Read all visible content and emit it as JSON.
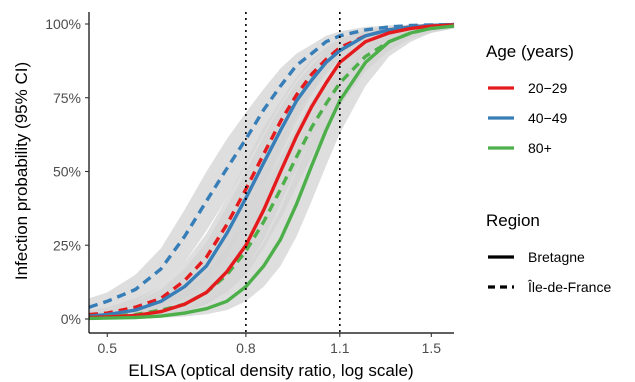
{
  "chart_data": {
    "type": "line",
    "xlabel": "ELISA (optical density ratio, log scale)",
    "ylabel": "Infection probability (95% CI)",
    "x_scale": "log",
    "xlim": [
      0.47,
      1.62
    ],
    "ylim": [
      0,
      1
    ],
    "x_ticks": [
      {
        "value": 0.5,
        "label": "0.5"
      },
      {
        "value": 0.8,
        "label": "0.8"
      },
      {
        "value": 1.1,
        "label": "1.1"
      },
      {
        "value": 1.5,
        "label": "1.5"
      }
    ],
    "y_ticks": [
      {
        "value": 0,
        "label": "0%"
      },
      {
        "value": 0.25,
        "label": "25%"
      },
      {
        "value": 0.5,
        "label": "50%"
      },
      {
        "value": 0.75,
        "label": "75%"
      },
      {
        "value": 1,
        "label": "100%"
      }
    ],
    "vlines": [
      0.8,
      1.1
    ],
    "grid": false,
    "legend_placement": "right",
    "legends": [
      {
        "title": "Age (years)",
        "items": [
          {
            "label": "20−29",
            "color": "#E41A1C",
            "style": "solid"
          },
          {
            "label": "40−49",
            "color": "#377EB8",
            "style": "solid"
          },
          {
            "label": "80+",
            "color": "#4DAF4A",
            "style": "solid"
          }
        ]
      },
      {
        "title": "Region",
        "items": [
          {
            "label": "Bretagne",
            "color": "#000000",
            "style": "solid"
          },
          {
            "label": "Île-de-France",
            "color": "#000000",
            "style": "dashed"
          }
        ]
      }
    ],
    "ribbon_color": "#d3d3d3",
    "series": [
      {
        "age": "40−49",
        "region": "Île-de-France",
        "color": "#377EB8",
        "dashed": true,
        "x": [
          0.47,
          0.5,
          0.55,
          0.6,
          0.65,
          0.7,
          0.75,
          0.8,
          0.85,
          0.9,
          0.95,
          1.0,
          1.05,
          1.1,
          1.2,
          1.3,
          1.4,
          1.5,
          1.62
        ],
        "y": [
          0.04,
          0.06,
          0.1,
          0.17,
          0.28,
          0.4,
          0.51,
          0.61,
          0.71,
          0.79,
          0.86,
          0.9,
          0.94,
          0.96,
          0.98,
          0.99,
          0.995,
          0.997,
          0.998
        ],
        "lower": [
          0.02,
          0.035,
          0.06,
          0.11,
          0.19,
          0.3,
          0.41,
          0.52,
          0.63,
          0.73,
          0.81,
          0.87,
          0.91,
          0.94,
          0.97,
          0.985,
          0.99,
          0.993,
          0.995
        ],
        "upper": [
          0.07,
          0.09,
          0.15,
          0.24,
          0.37,
          0.5,
          0.61,
          0.7,
          0.78,
          0.85,
          0.9,
          0.93,
          0.96,
          0.975,
          0.99,
          0.995,
          0.998,
          0.999,
          1.0
        ]
      },
      {
        "age": "20−29",
        "region": "Île-de-France",
        "color": "#E41A1C",
        "dashed": true,
        "x": [
          0.47,
          0.5,
          0.55,
          0.6,
          0.65,
          0.7,
          0.75,
          0.8,
          0.85,
          0.9,
          0.95,
          1.0,
          1.05,
          1.1,
          1.2,
          1.3,
          1.4,
          1.5,
          1.62
        ],
        "y": [
          0.015,
          0.02,
          0.04,
          0.07,
          0.13,
          0.21,
          0.32,
          0.44,
          0.56,
          0.67,
          0.76,
          0.83,
          0.88,
          0.92,
          0.96,
          0.98,
          0.99,
          0.995,
          0.998
        ],
        "lower": [
          0.005,
          0.01,
          0.02,
          0.04,
          0.08,
          0.14,
          0.23,
          0.35,
          0.47,
          0.59,
          0.69,
          0.77,
          0.84,
          0.89,
          0.94,
          0.97,
          0.985,
          0.99,
          0.995
        ],
        "upper": [
          0.03,
          0.04,
          0.07,
          0.11,
          0.19,
          0.29,
          0.41,
          0.53,
          0.65,
          0.74,
          0.82,
          0.88,
          0.92,
          0.95,
          0.98,
          0.99,
          0.995,
          0.998,
          1.0
        ]
      },
      {
        "age": "40−49",
        "region": "Bretagne",
        "color": "#377EB8",
        "dashed": false,
        "x": [
          0.47,
          0.5,
          0.55,
          0.6,
          0.65,
          0.7,
          0.75,
          0.8,
          0.85,
          0.9,
          0.95,
          1.0,
          1.05,
          1.1,
          1.2,
          1.3,
          1.4,
          1.5,
          1.62
        ],
        "y": [
          0.01,
          0.015,
          0.03,
          0.06,
          0.11,
          0.18,
          0.29,
          0.41,
          0.53,
          0.64,
          0.74,
          0.81,
          0.87,
          0.91,
          0.96,
          0.98,
          0.99,
          0.995,
          0.998
        ],
        "lower": [
          0.003,
          0.006,
          0.015,
          0.035,
          0.07,
          0.12,
          0.21,
          0.32,
          0.44,
          0.56,
          0.67,
          0.76,
          0.83,
          0.88,
          0.94,
          0.97,
          0.985,
          0.99,
          0.995
        ],
        "upper": [
          0.025,
          0.035,
          0.06,
          0.1,
          0.17,
          0.26,
          0.38,
          0.5,
          0.62,
          0.72,
          0.8,
          0.86,
          0.91,
          0.94,
          0.975,
          0.99,
          0.995,
          0.998,
          1.0
        ]
      },
      {
        "age": "80+",
        "region": "Île-de-France",
        "color": "#4DAF4A",
        "dashed": true,
        "x": [
          0.47,
          0.5,
          0.55,
          0.6,
          0.65,
          0.7,
          0.75,
          0.8,
          0.85,
          0.9,
          0.95,
          1.0,
          1.05,
          1.1,
          1.2,
          1.3,
          1.4,
          1.5,
          1.62
        ],
        "y": [
          0.005,
          0.008,
          0.015,
          0.03,
          0.05,
          0.09,
          0.15,
          0.23,
          0.33,
          0.44,
          0.55,
          0.65,
          0.73,
          0.8,
          0.89,
          0.94,
          0.97,
          0.985,
          0.995
        ],
        "lower": [
          0.001,
          0.002,
          0.005,
          0.012,
          0.025,
          0.05,
          0.09,
          0.15,
          0.24,
          0.34,
          0.45,
          0.55,
          0.64,
          0.72,
          0.84,
          0.91,
          0.95,
          0.97,
          0.985
        ],
        "upper": [
          0.015,
          0.02,
          0.035,
          0.06,
          0.1,
          0.16,
          0.24,
          0.33,
          0.44,
          0.55,
          0.65,
          0.74,
          0.81,
          0.87,
          0.94,
          0.97,
          0.985,
          0.995,
          1.0
        ]
      },
      {
        "age": "20−29",
        "region": "Bretagne",
        "color": "#E41A1C",
        "dashed": false,
        "x": [
          0.47,
          0.5,
          0.55,
          0.6,
          0.65,
          0.7,
          0.75,
          0.8,
          0.85,
          0.9,
          0.95,
          1.0,
          1.05,
          1.1,
          1.2,
          1.3,
          1.4,
          1.5,
          1.62
        ],
        "y": [
          0.005,
          0.007,
          0.012,
          0.025,
          0.05,
          0.09,
          0.16,
          0.25,
          0.37,
          0.5,
          0.62,
          0.72,
          0.8,
          0.87,
          0.94,
          0.97,
          0.985,
          0.993,
          0.997
        ],
        "lower": [
          0.001,
          0.002,
          0.004,
          0.01,
          0.025,
          0.05,
          0.1,
          0.17,
          0.27,
          0.39,
          0.51,
          0.62,
          0.71,
          0.79,
          0.9,
          0.95,
          0.975,
          0.985,
          0.993
        ],
        "upper": [
          0.012,
          0.015,
          0.025,
          0.05,
          0.09,
          0.15,
          0.24,
          0.35,
          0.48,
          0.61,
          0.72,
          0.81,
          0.87,
          0.92,
          0.97,
          0.985,
          0.993,
          0.997,
          1.0
        ]
      },
      {
        "age": "80+",
        "region": "Bretagne",
        "color": "#4DAF4A",
        "dashed": false,
        "x": [
          0.47,
          0.5,
          0.55,
          0.6,
          0.65,
          0.7,
          0.75,
          0.8,
          0.85,
          0.9,
          0.95,
          1.0,
          1.05,
          1.1,
          1.2,
          1.3,
          1.4,
          1.5,
          1.62
        ],
        "y": [
          0.002,
          0.003,
          0.005,
          0.01,
          0.02,
          0.035,
          0.06,
          0.11,
          0.18,
          0.27,
          0.39,
          0.52,
          0.64,
          0.74,
          0.87,
          0.94,
          0.97,
          0.985,
          0.993
        ],
        "lower": [
          0.0,
          0.001,
          0.002,
          0.004,
          0.008,
          0.016,
          0.03,
          0.06,
          0.11,
          0.18,
          0.28,
          0.4,
          0.52,
          0.63,
          0.79,
          0.89,
          0.94,
          0.97,
          0.985
        ],
        "upper": [
          0.006,
          0.008,
          0.012,
          0.02,
          0.035,
          0.06,
          0.1,
          0.17,
          0.26,
          0.37,
          0.5,
          0.62,
          0.73,
          0.82,
          0.92,
          0.965,
          0.985,
          0.993,
          0.998
        ]
      }
    ]
  }
}
